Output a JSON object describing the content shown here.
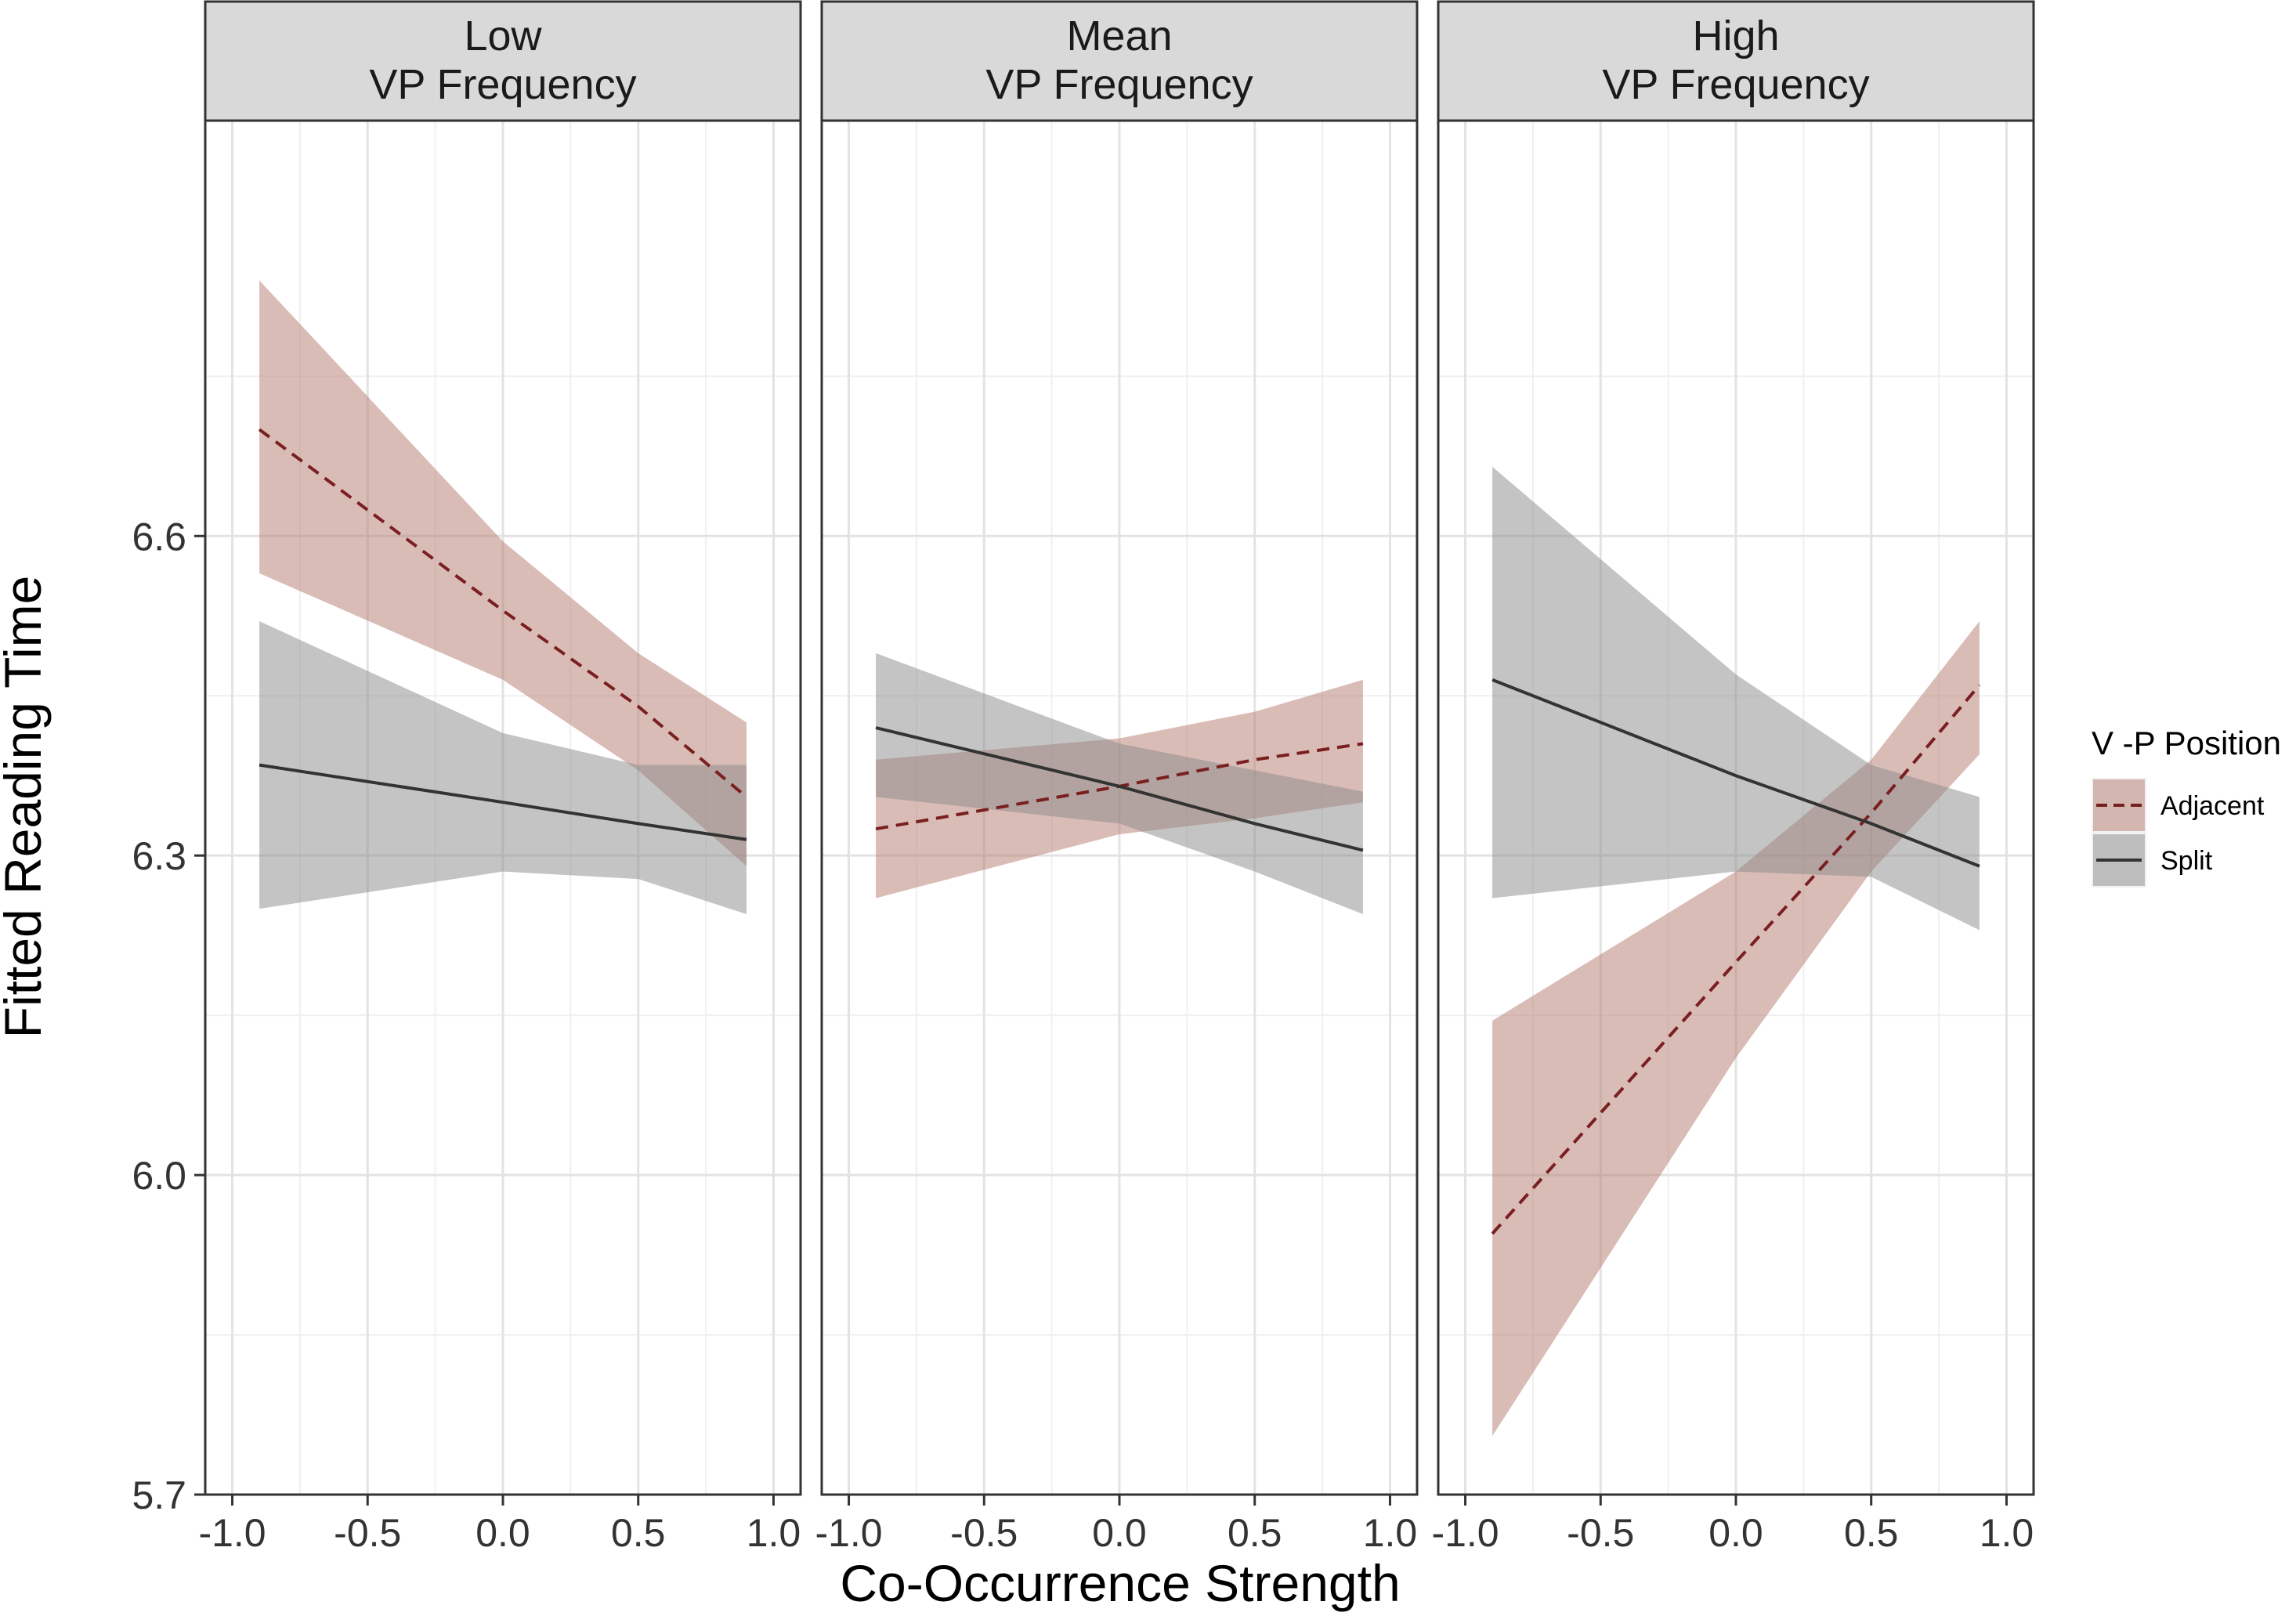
{
  "chart_data": {
    "type": "line",
    "xlabel": "Co-Occurrence Strength",
    "ylabel": "Fitted Reading Time",
    "xlim": [
      -1.1,
      1.1
    ],
    "ylim": [
      5.7,
      6.99
    ],
    "x_ticks": [
      -1.0,
      -0.5,
      0.0,
      0.5,
      1.0
    ],
    "x_tick_labels": [
      "-1.0",
      "-0.5",
      "0.0",
      "0.5",
      "1.0"
    ],
    "y_ticks": [
      5.7,
      6.0,
      6.3,
      6.6
    ],
    "y_tick_labels": [
      "5.7",
      "6.0",
      "6.3",
      "6.6"
    ],
    "legend": {
      "title": "V -P Position",
      "position": "right",
      "entries": [
        {
          "key": "adjacent",
          "label": "Adjacent",
          "line_color": "#7a1f1f",
          "fill_color": "#b57a70",
          "dashed": true
        },
        {
          "key": "split",
          "label": "Split",
          "line_color": "#333333",
          "fill_color": "#8a8a8a",
          "dashed": false
        }
      ]
    },
    "panels": [
      {
        "strip": [
          "Low",
          "VP Frequency"
        ],
        "series": [
          {
            "key": "adjacent",
            "x": [
              -0.9,
              0.0,
              0.5,
              0.9
            ],
            "fit": [
              6.7,
              6.53,
              6.44,
              6.355
            ],
            "lower": [
              6.565,
              6.465,
              6.38,
              6.29
            ],
            "upper": [
              6.84,
              6.595,
              6.49,
              6.425
            ]
          },
          {
            "key": "split",
            "x": [
              -0.9,
              0.0,
              0.5,
              0.9
            ],
            "fit": [
              6.385,
              6.35,
              6.33,
              6.315
            ],
            "lower": [
              6.25,
              6.285,
              6.278,
              6.245
            ],
            "upper": [
              6.52,
              6.415,
              6.385,
              6.385
            ]
          }
        ]
      },
      {
        "strip": [
          "Mean",
          "VP Frequency"
        ],
        "series": [
          {
            "key": "adjacent",
            "x": [
              -0.9,
              0.0,
              0.5,
              0.9
            ],
            "fit": [
              6.325,
              6.365,
              6.39,
              6.405
            ],
            "lower": [
              6.26,
              6.32,
              6.335,
              6.35
            ],
            "upper": [
              6.39,
              6.41,
              6.435,
              6.465
            ]
          },
          {
            "key": "split",
            "x": [
              -0.9,
              0.0,
              0.5,
              0.9
            ],
            "fit": [
              6.42,
              6.365,
              6.33,
              6.305
            ],
            "lower": [
              6.355,
              6.33,
              6.285,
              6.245
            ],
            "upper": [
              6.49,
              6.405,
              6.38,
              6.36
            ]
          }
        ]
      },
      {
        "strip": [
          "High",
          "VP Frequency"
        ],
        "series": [
          {
            "key": "adjacent",
            "x": [
              -0.9,
              0.0,
              0.5,
              0.9
            ],
            "fit": [
              5.945,
              6.2,
              6.34,
              6.46
            ],
            "lower": [
              5.755,
              6.11,
              6.285,
              6.395
            ],
            "upper": [
              6.145,
              6.285,
              6.39,
              6.52
            ]
          },
          {
            "key": "split",
            "x": [
              -0.9,
              0.0,
              0.5,
              0.9
            ],
            "fit": [
              6.465,
              6.375,
              6.33,
              6.29
            ],
            "lower": [
              6.26,
              6.285,
              6.28,
              6.23
            ],
            "upper": [
              6.665,
              6.47,
              6.385,
              6.355
            ]
          }
        ]
      }
    ]
  }
}
